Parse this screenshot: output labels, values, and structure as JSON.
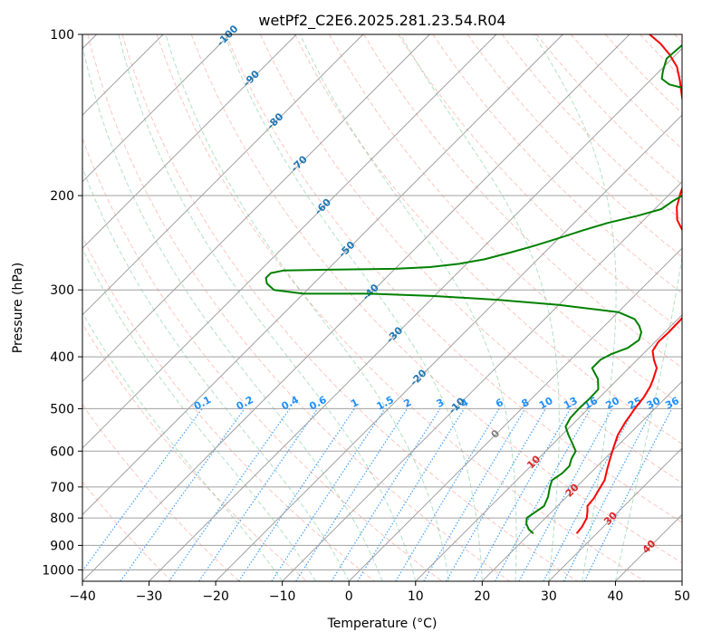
{
  "chart_data": {
    "type": "line",
    "title": "wetPf2_C2E6.2025.281.23.54.R04",
    "xlabel": "Temperature (°C)",
    "ylabel": "Pressure (hPa)",
    "xlim": [
      -40,
      50
    ],
    "ylim": [
      1050,
      100
    ],
    "y_scale": "log",
    "grid": true,
    "x_ticks": [
      "−40",
      "−30",
      "−20",
      "−10",
      "0",
      "10",
      "20",
      "30",
      "40",
      "50"
    ],
    "y_ticks": [
      "100",
      "200",
      "300",
      "400",
      "500",
      "600",
      "700",
      "800",
      "900",
      "1000"
    ],
    "colors": {
      "temperature": "#ff0000",
      "dewpoint": "#008000",
      "isotherm": "#a0a0a0",
      "isobar": "#a0a0a0",
      "dry_adiabat": "#fa8072",
      "moist_adiabat": "#3cb371",
      "mixing_ratio": "#1e90ff",
      "isotherm_label": "#1f77b4",
      "mixing_ratio_label": "#1e90ff",
      "zero_label": "#808080",
      "warm_label": "#d62728"
    },
    "isotherm_labels": [
      "-100",
      "-90",
      "-80",
      "-70",
      "-60",
      "-50",
      "-40",
      "-30",
      "-20",
      "-10",
      "0",
      "10",
      "20",
      "30",
      "40"
    ],
    "mixing_ratio_labels": [
      "0.1",
      "0.2",
      "0.4",
      "0.6",
      "1",
      "1.5",
      "2",
      "3",
      "4",
      "6",
      "8",
      "10",
      "13",
      "16",
      "20",
      "25",
      "30",
      "36"
    ],
    "series": [
      {
        "name": "",
        "color": "#ff0000",
        "points": [
          [
            27,
            855
          ],
          [
            26.8,
            830
          ],
          [
            26.2,
            800
          ],
          [
            25.2,
            775
          ],
          [
            24.5,
            760
          ],
          [
            24.3,
            735
          ],
          [
            23.8,
            710
          ],
          [
            23.2,
            680
          ],
          [
            22,
            650
          ],
          [
            20.8,
            620
          ],
          [
            19.6,
            590
          ],
          [
            18.4,
            560
          ],
          [
            17.6,
            530
          ],
          [
            17,
            500
          ],
          [
            16.6,
            475
          ],
          [
            16,
            455
          ],
          [
            15.3,
            440
          ],
          [
            14.2,
            420
          ],
          [
            12.5,
            405
          ],
          [
            11,
            390
          ],
          [
            10.5,
            375
          ],
          [
            10.6,
            360
          ],
          [
            10.5,
            340
          ],
          [
            10,
            320
          ],
          [
            9.3,
            305
          ],
          [
            8.6,
            290
          ],
          [
            6.5,
            275
          ],
          [
            4,
            262
          ],
          [
            1,
            248
          ],
          [
            -2,
            235
          ],
          [
            -5,
            222
          ],
          [
            -7,
            210
          ],
          [
            -8.5,
            198
          ],
          [
            -10,
            185
          ],
          [
            -12,
            172
          ],
          [
            -14.5,
            160
          ],
          [
            -17,
            150
          ],
          [
            -20,
            140
          ],
          [
            -23,
            130
          ],
          [
            -25.5,
            122
          ],
          [
            -28,
            115
          ],
          [
            -31,
            109
          ],
          [
            -34,
            104
          ],
          [
            -37,
            100
          ]
        ]
      },
      {
        "name": "",
        "color": "#008000",
        "points": [
          [
            20.5,
            855
          ],
          [
            19.2,
            840
          ],
          [
            18,
            820
          ],
          [
            17.2,
            800
          ],
          [
            17.6,
            780
          ],
          [
            18,
            760
          ],
          [
            17.2,
            730
          ],
          [
            16,
            700
          ],
          [
            15.3,
            680
          ],
          [
            15.8,
            660
          ],
          [
            15.8,
            640
          ],
          [
            15,
            620
          ],
          [
            14.5,
            600
          ],
          [
            12.8,
            580
          ],
          [
            11,
            560
          ],
          [
            9.3,
            540
          ],
          [
            8.7,
            520
          ],
          [
            8.6,
            500
          ],
          [
            8.7,
            480
          ],
          [
            8.6,
            460
          ],
          [
            7,
            440
          ],
          [
            4.5,
            420
          ],
          [
            4.5,
            405
          ],
          [
            5.3,
            395
          ],
          [
            6.8,
            385
          ],
          [
            7.3,
            372
          ],
          [
            6.5,
            360
          ],
          [
            5.2,
            350
          ],
          [
            3.5,
            340
          ],
          [
            0,
            330
          ],
          [
            -10,
            320
          ],
          [
            -20,
            313
          ],
          [
            -30,
            308
          ],
          [
            -40,
            305
          ],
          [
            -50,
            305
          ],
          [
            -55,
            300
          ],
          [
            -57,
            292
          ],
          [
            -58,
            285
          ],
          [
            -58,
            279
          ],
          [
            -56.5,
            276
          ],
          [
            -50,
            275
          ],
          [
            -40,
            274
          ],
          [
            -35,
            272
          ],
          [
            -31,
            268
          ],
          [
            -28,
            263
          ],
          [
            -25,
            255
          ],
          [
            -22.5,
            248
          ],
          [
            -20,
            240
          ],
          [
            -17.5,
            232
          ],
          [
            -15,
            225
          ],
          [
            -11.5,
            218
          ],
          [
            -9,
            212
          ],
          [
            -8.5,
            205
          ],
          [
            -7.5,
            197
          ],
          [
            -6.2,
            190
          ],
          [
            -7,
            182
          ],
          [
            -9.5,
            172
          ],
          [
            -13,
            161
          ],
          [
            -16,
            150
          ],
          [
            -19,
            138
          ],
          [
            -21.5,
            130
          ],
          [
            -23.8,
            126
          ],
          [
            -26.5,
            124
          ],
          [
            -28.5,
            121
          ],
          [
            -29.5,
            117
          ],
          [
            -30.8,
            111
          ],
          [
            -30.5,
            105
          ],
          [
            -28,
            100
          ]
        ]
      }
    ]
  }
}
